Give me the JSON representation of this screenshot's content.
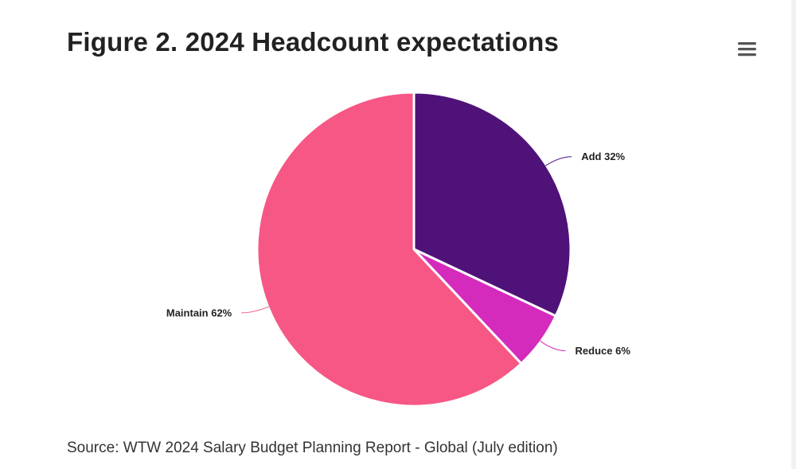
{
  "chart_data": {
    "type": "pie",
    "title": "Figure 2. 2024 Headcount expectations",
    "source": "Source: WTW 2024 Salary Budget Planning Report - Global (July edition)",
    "start_angle_deg": 0,
    "slices": [
      {
        "name": "Add",
        "value": 32,
        "label": "Add 32%",
        "color": "#4f1279",
        "connector_color": "#4f1279"
      },
      {
        "name": "Reduce",
        "value": 6,
        "label": "Reduce 6%",
        "color": "#d42bbd",
        "connector_color": "#d42bbd"
      },
      {
        "name": "Maintain",
        "value": 62,
        "label": "Maintain 62%",
        "color": "#f65785",
        "connector_color": "#f65785"
      }
    ]
  },
  "toolbar": {
    "menu_icon": "hamburger-menu-icon",
    "menu_color": "#555555"
  }
}
